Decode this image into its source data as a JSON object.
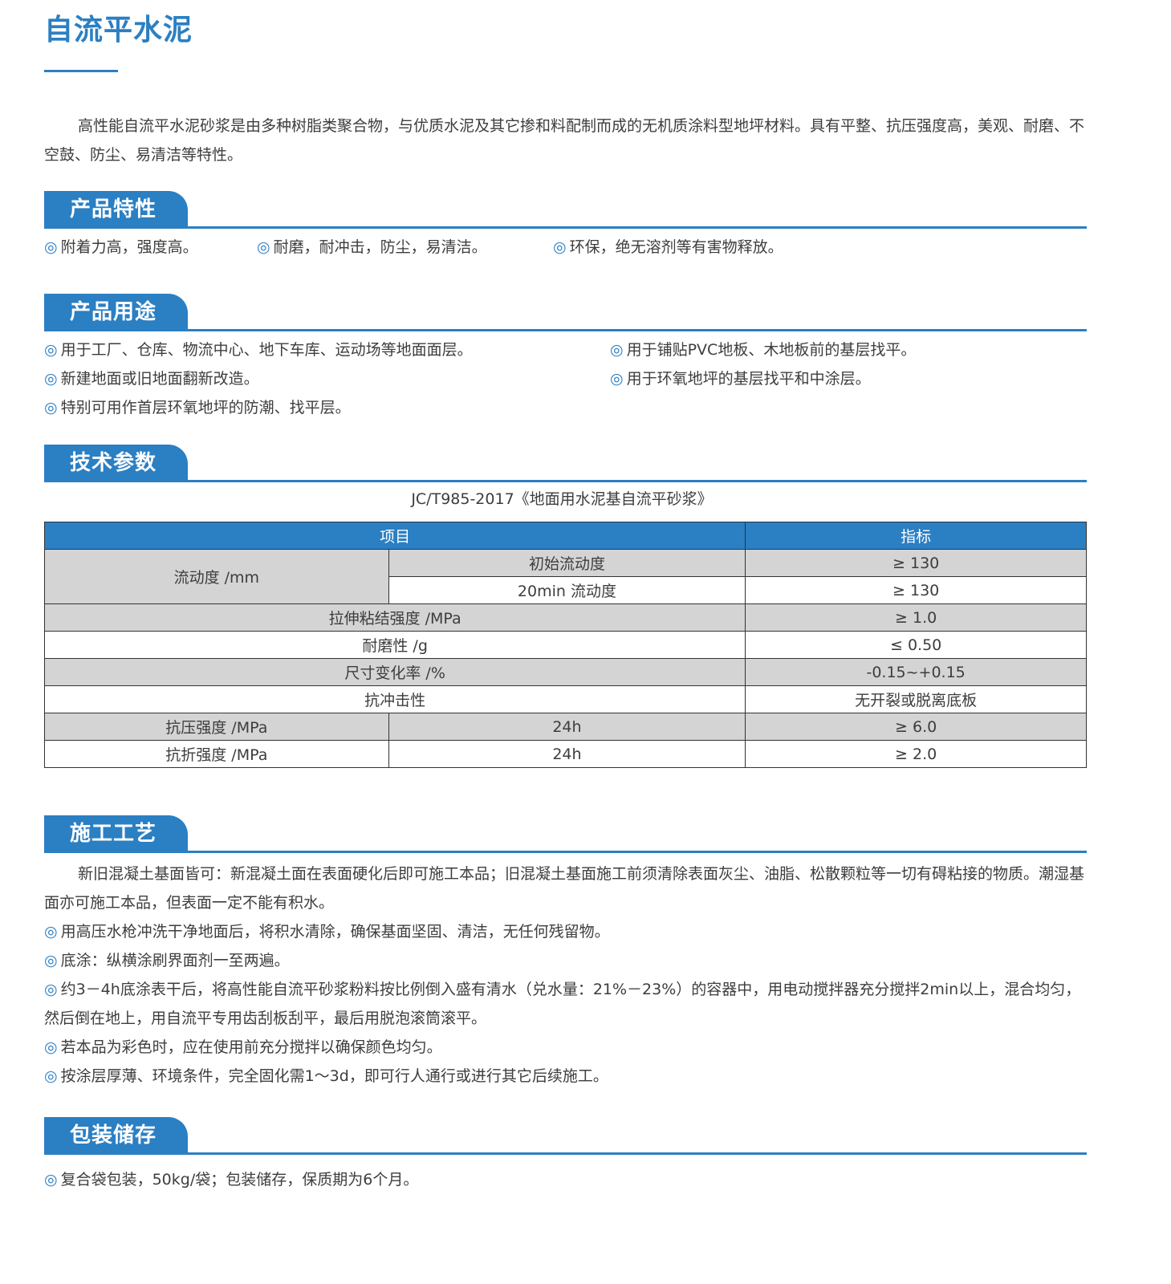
{
  "title": "自流平水泥",
  "intro": "高性能自流平水泥砂浆是由多种树脂类聚合物，与优质水泥及其它掺和料配制而成的无机质涂料型地坪材料。具有平整、抗压强度高，美观、耐磨、不空鼓、防尘、易清洁等特性。",
  "bullet": "◎",
  "features": {
    "heading": "产品特性",
    "items": [
      "附着力高，强度高。",
      "耐磨，耐冲击，防尘，易清洁。",
      "环保，绝无溶剂等有害物释放。"
    ]
  },
  "uses": {
    "heading": "产品用途",
    "items": [
      "用于工厂、仓库、物流中心、地下车库、运动场等地面面层。",
      "用于铺贴PVC地板、木地板前的基层找平。",
      "新建地面或旧地面翻新改造。",
      "用于环氧地坪的基层找平和中涂层。",
      "特别可用作首层环氧地坪的防潮、找平层。"
    ]
  },
  "tech": {
    "heading": "技术参数",
    "standard": "JC/T985-2017《地面用水泥基自流平砂浆》",
    "headers": [
      "项目",
      "指标"
    ],
    "rows": [
      {
        "item": "流动度 /mm",
        "sub": "初始流动度",
        "value": "≥ 130"
      },
      {
        "sub": "20min 流动度",
        "value": "≥ 130"
      },
      {
        "item": "拉伸粘结强度 /MPa",
        "value": "≥ 1.0"
      },
      {
        "item": "耐磨性 /g",
        "value": "≤ 0.50"
      },
      {
        "item": "尺寸变化率 /%",
        "value": "-0.15~+0.15"
      },
      {
        "item": "抗冲击性",
        "value": "无开裂或脱离底板"
      },
      {
        "item": "抗压强度 /MPa",
        "sub": "24h",
        "value": "≥ 6.0"
      },
      {
        "item": "抗折强度 /MPa",
        "sub": "24h",
        "value": "≥ 2.0"
      }
    ]
  },
  "construction": {
    "heading": "施工工艺",
    "intro": "新旧混凝土基面皆可：新混凝土面在表面硬化后即可施工本品；旧混凝土基面施工前须清除表面灰尘、油脂、松散颗粒等一切有碍粘接的物质。潮湿基面亦可施工本品，但表面一定不能有积水。",
    "items": [
      "用高压水枪冲洗干净地面后，将积水清除，确保基面坚固、清洁，无任何残留物。",
      "底涂：纵横涂刷界面剂一至两遍。",
      "约3－4h底涂表干后，将高性能自流平砂浆粉料按比例倒入盛有清水（兑水量：21%－23%）的容器中，用电动搅拌器充分搅拌2min以上，混合均匀，然后倒在地上，用自流平专用齿刮板刮平，最后用脱泡滚筒滚平。",
      "若本品为彩色时，应在使用前充分搅拌以确保颜色均匀。",
      "按涂层厚薄、环境条件，完全固化需1～3d，即可行人通行或进行其它后续施工。"
    ]
  },
  "packaging": {
    "heading": "包装储存",
    "items": [
      "复合袋包装，50kg/袋；包装储存，保质期为6个月。"
    ]
  },
  "colors": {
    "accent": "#2b7fc3",
    "row_gray": "#d4d4d4"
  }
}
